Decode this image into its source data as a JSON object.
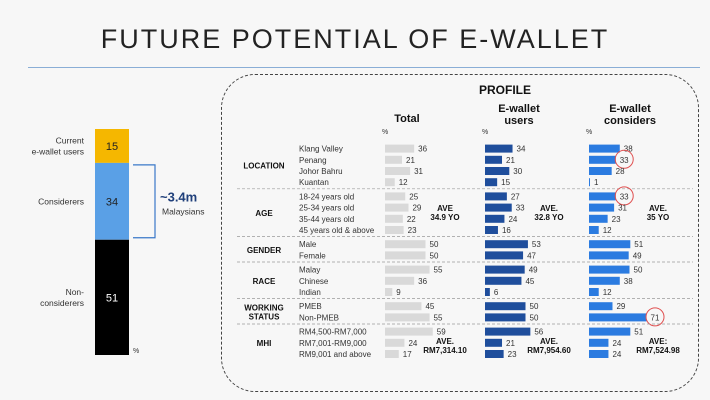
{
  "title": "FUTURE POTENTIAL OF E-WALLET",
  "colors": {
    "current": "#f5b700",
    "considerers": "#5aa0e6",
    "non": "#000000",
    "total_bar": "#d9d9d9",
    "users_bar": "#1f4e9c",
    "considers_bar": "#2b7be0",
    "callout": "#3a78c9",
    "circle": "#e05050"
  },
  "chart_data": [
    {
      "type": "bar",
      "stacked": true,
      "unit": "%",
      "categories": [
        "Current\ne-wallet users",
        "Considerers",
        "Non-\nconsiderers"
      ],
      "values": [
        15,
        34,
        51
      ],
      "callout": {
        "value": "~3.4m",
        "label": "Malaysians"
      }
    },
    {
      "type": "bar",
      "title": "PROFILE",
      "unit": "%",
      "series_headers": [
        "Total",
        "E-wallet\nusers",
        "E-wallet\nconsiders"
      ],
      "groups": [
        {
          "name": "LOCATION",
          "rows": [
            {
              "label": "Klang Valley",
              "values": [
                36,
                34,
                38
              ]
            },
            {
              "label": "Penang",
              "values": [
                21,
                21,
                33
              ],
              "highlight": 2
            },
            {
              "label": "Johor Bahru",
              "values": [
                31,
                30,
                28
              ]
            },
            {
              "label": "Kuantan",
              "values": [
                12,
                15,
                1
              ]
            }
          ]
        },
        {
          "name": "AGE",
          "rows": [
            {
              "label": "18-24 years old",
              "values": [
                25,
                27,
                33
              ],
              "highlight": 2
            },
            {
              "label": "25-34 years old",
              "values": [
                29,
                33,
                31
              ]
            },
            {
              "label": "35-44 years old",
              "values": [
                22,
                24,
                23
              ]
            },
            {
              "label": "45 years old & above",
              "values": [
                23,
                16,
                12
              ]
            }
          ],
          "averages": [
            "AVE\n34.9 YO",
            "AVE.\n32.8 YO",
            "AVE.\n35 YO"
          ]
        },
        {
          "name": "GENDER",
          "rows": [
            {
              "label": "Male",
              "values": [
                50,
                53,
                51
              ]
            },
            {
              "label": "Female",
              "values": [
                50,
                47,
                49
              ]
            }
          ]
        },
        {
          "name": "RACE",
          "rows": [
            {
              "label": "Malay",
              "values": [
                55,
                49,
                50
              ]
            },
            {
              "label": "Chinese",
              "values": [
                36,
                45,
                38
              ]
            },
            {
              "label": "Indian",
              "values": [
                9,
                6,
                12
              ]
            }
          ]
        },
        {
          "name": "WORKING\nSTATUS",
          "rows": [
            {
              "label": "PMEB",
              "values": [
                45,
                50,
                29
              ]
            },
            {
              "label": "Non-PMEB",
              "values": [
                55,
                50,
                71
              ],
              "highlight": 2
            }
          ]
        },
        {
          "name": "MHI",
          "rows": [
            {
              "label": "RM4,500-RM7,000",
              "values": [
                59,
                56,
                51
              ]
            },
            {
              "label": "RM7,001-RM9,000",
              "values": [
                24,
                21,
                24
              ]
            },
            {
              "label": "RM9,001 and above",
              "values": [
                17,
                23,
                24
              ]
            }
          ],
          "averages": [
            "AVE.\nRM7,314.10",
            "AVE.\nRM7,954.60",
            "AVE:\nRM7,524.98"
          ]
        }
      ]
    }
  ]
}
